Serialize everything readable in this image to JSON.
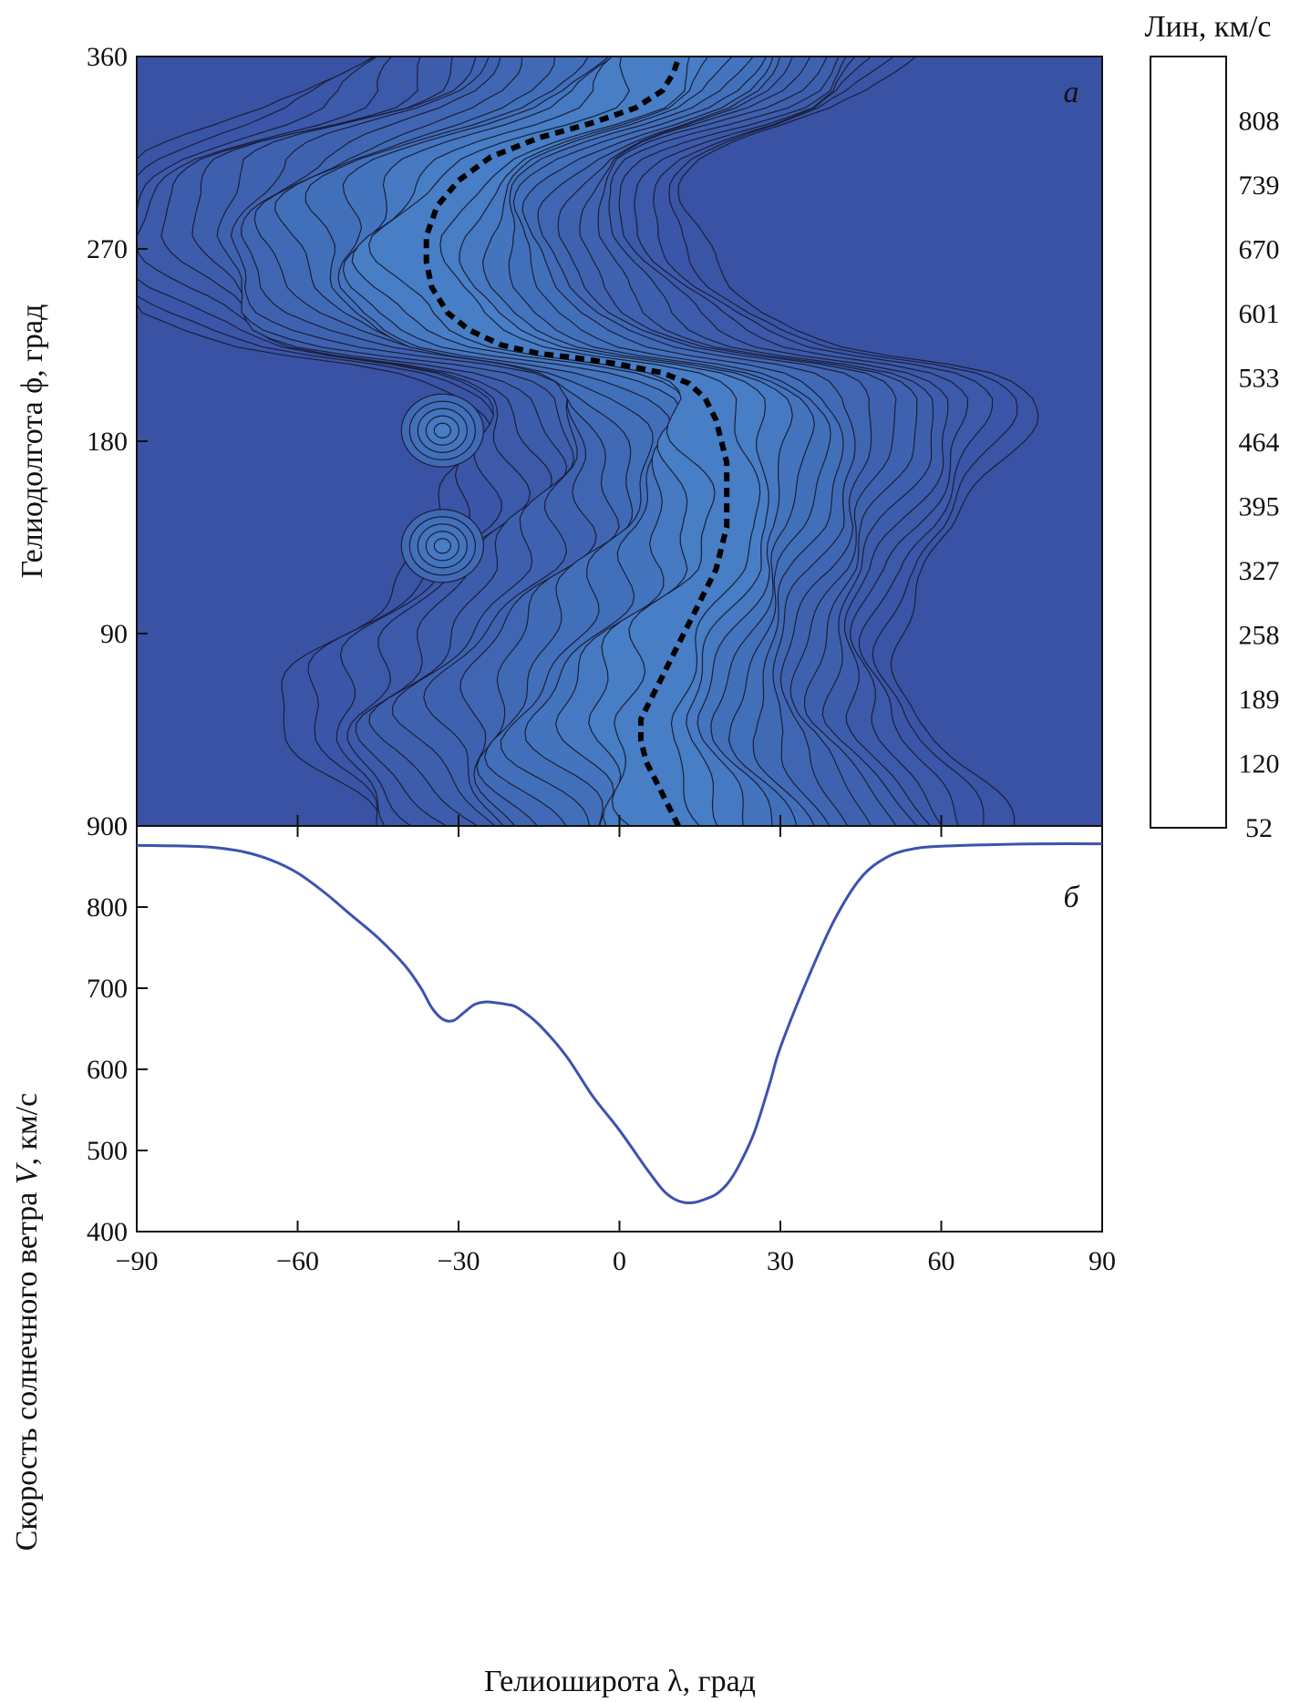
{
  "chart_data": [
    {
      "type": "heatmap",
      "panel_label": "а",
      "xlabel": "",
      "ylabel": "Гелиодолгота ϕ, град",
      "xlim": [
        -90,
        90
      ],
      "ylim": [
        0,
        360
      ],
      "yticks": [
        0,
        90,
        180,
        270,
        360
      ],
      "xticks": [
        -90,
        -60,
        -30,
        0,
        30,
        60,
        90
      ],
      "colorbar": {
        "title": "Лин, км/с",
        "tick_labels": [
          808,
          739,
          670,
          601,
          533,
          464,
          395,
          327,
          258,
          189,
          120,
          52
        ],
        "colors": [
          "#3a52a4",
          "#3a54a6",
          "#3b56a8",
          "#3c59aa",
          "#3d5cac",
          "#3e5fae",
          "#3f62b0",
          "#4066b3",
          "#416ab6",
          "#426fba",
          "#4474be",
          "#4679c2",
          "#477ec5",
          "#4883c8",
          "#4a89cb",
          "#4b8fcf",
          "#4c96d3",
          "#44a3dc",
          "#3aafe4",
          "#34bcee",
          "#45c0ea",
          "#58c4e6",
          "#63c8e2",
          "#6acbe0"
        ]
      },
      "neutral_line": [
        {
          "lat": 11,
          "lon": 0
        },
        {
          "lat": 9,
          "lon": 10
        },
        {
          "lat": 7,
          "lon": 20
        },
        {
          "lat": 5,
          "lon": 30
        },
        {
          "lat": 4,
          "lon": 40
        },
        {
          "lat": 4,
          "lon": 50
        },
        {
          "lat": 6,
          "lon": 60
        },
        {
          "lat": 8,
          "lon": 70
        },
        {
          "lat": 10,
          "lon": 80
        },
        {
          "lat": 12,
          "lon": 90
        },
        {
          "lat": 14,
          "lon": 100
        },
        {
          "lat": 16,
          "lon": 110
        },
        {
          "lat": 18,
          "lon": 120
        },
        {
          "lat": 19,
          "lon": 130
        },
        {
          "lat": 20,
          "lon": 140
        },
        {
          "lat": 20,
          "lon": 150
        },
        {
          "lat": 20,
          "lon": 160
        },
        {
          "lat": 20,
          "lon": 170
        },
        {
          "lat": 19,
          "lon": 180
        },
        {
          "lat": 18,
          "lon": 190
        },
        {
          "lat": 16,
          "lon": 200
        },
        {
          "lat": 13,
          "lon": 207
        },
        {
          "lat": 8,
          "lon": 212
        },
        {
          "lat": 0,
          "lon": 216
        },
        {
          "lat": -8,
          "lon": 219
        },
        {
          "lat": -15,
          "lon": 221
        },
        {
          "lat": -22,
          "lon": 225
        },
        {
          "lat": -28,
          "lon": 232
        },
        {
          "lat": -32,
          "lon": 240
        },
        {
          "lat": -35,
          "lon": 252
        },
        {
          "lat": -36,
          "lon": 264
        },
        {
          "lat": -36,
          "lon": 276
        },
        {
          "lat": -34,
          "lon": 290
        },
        {
          "lat": -30,
          "lon": 302
        },
        {
          "lat": -24,
          "lon": 313
        },
        {
          "lat": -15,
          "lon": 322
        },
        {
          "lat": -5,
          "lon": 329
        },
        {
          "lat": 3,
          "lon": 336
        },
        {
          "lat": 8,
          "lon": 344
        },
        {
          "lat": 10,
          "lon": 352
        },
        {
          "lat": 11,
          "lon": 359
        }
      ]
    },
    {
      "type": "line",
      "panel_label": "б",
      "xlabel": "Гелиоширота λ, град",
      "ylabel": "Скорость солнечного ветра V, км/с",
      "ylabel_parts": [
        "Скорость солнечного ветра ",
        "V",
        ", км/с"
      ],
      "xlim": [
        -90,
        90
      ],
      "ylim": [
        400,
        900
      ],
      "xticks": [
        -90,
        -60,
        -30,
        0,
        30,
        60,
        90
      ],
      "yticks": [
        400,
        500,
        600,
        700,
        800,
        900
      ],
      "color": "#3d52b0",
      "x": [
        -90,
        -80,
        -75,
        -70,
        -65,
        -60,
        -55,
        -50,
        -45,
        -40,
        -37,
        -35,
        -33,
        -31,
        -29,
        -27,
        -25,
        -23,
        -21,
        -19,
        -15,
        -10,
        -5,
        0,
        5,
        8,
        10,
        12,
        14,
        16,
        18,
        20,
        22,
        25,
        28,
        30,
        35,
        40,
        45,
        50,
        55,
        60,
        70,
        80,
        90
      ],
      "y": [
        876,
        875,
        873,
        868,
        858,
        842,
        818,
        790,
        762,
        728,
        700,
        676,
        662,
        660,
        670,
        680,
        683,
        682,
        680,
        676,
        655,
        617,
        567,
        525,
        478,
        452,
        441,
        436,
        436,
        440,
        446,
        458,
        478,
        520,
        582,
        627,
        710,
        783,
        836,
        862,
        872,
        875,
        877,
        878,
        878
      ]
    }
  ]
}
